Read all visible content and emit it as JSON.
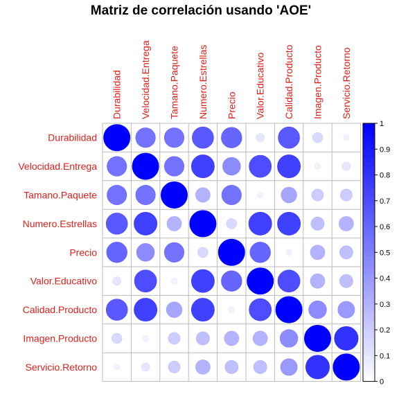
{
  "chart_data": {
    "type": "heatmap",
    "title": "Matriz de correlación usando 'AOE'",
    "variables": [
      "Durabilidad",
      "Velocidad.Entrega",
      "Tamano.Paquete",
      "Numero.Estrellas",
      "Precio",
      "Valor.Educativo",
      "Calidad.Producto",
      "Imagen.Producto",
      "Servicio.Retorno"
    ],
    "matrix": [
      [
        1.0,
        0.55,
        0.55,
        0.65,
        0.6,
        0.1,
        0.65,
        0.15,
        0.05
      ],
      [
        0.55,
        1.0,
        0.55,
        0.75,
        0.45,
        0.7,
        0.75,
        0.05,
        0.1
      ],
      [
        0.55,
        0.55,
        1.0,
        0.3,
        0.55,
        0.05,
        0.35,
        0.2,
        0.2
      ],
      [
        0.65,
        0.75,
        0.3,
        1.0,
        0.15,
        0.75,
        0.75,
        0.25,
        0.3
      ],
      [
        0.6,
        0.45,
        0.55,
        0.15,
        1.0,
        0.6,
        0.05,
        0.3,
        0.25
      ],
      [
        0.1,
        0.7,
        0.05,
        0.75,
        0.6,
        1.0,
        0.7,
        0.3,
        0.25
      ],
      [
        0.65,
        0.75,
        0.35,
        0.75,
        0.05,
        0.7,
        1.0,
        0.45,
        0.4
      ],
      [
        0.15,
        0.05,
        0.2,
        0.25,
        0.3,
        0.3,
        0.45,
        1.0,
        0.8
      ],
      [
        0.05,
        0.1,
        0.2,
        0.3,
        0.25,
        0.25,
        0.4,
        0.8,
        1.0
      ]
    ],
    "colorbar": {
      "min": 0,
      "max": 1,
      "ticks": [
        "0",
        "0.1",
        "0.2",
        "0.3",
        "0.4",
        "0.5",
        "0.6",
        "0.7",
        "0.8",
        "0.9",
        "1"
      ]
    },
    "colors": {
      "high": "#0000ff",
      "low": "#ffffff",
      "grid": "#bbbbbb",
      "label": "#e0201b"
    }
  }
}
